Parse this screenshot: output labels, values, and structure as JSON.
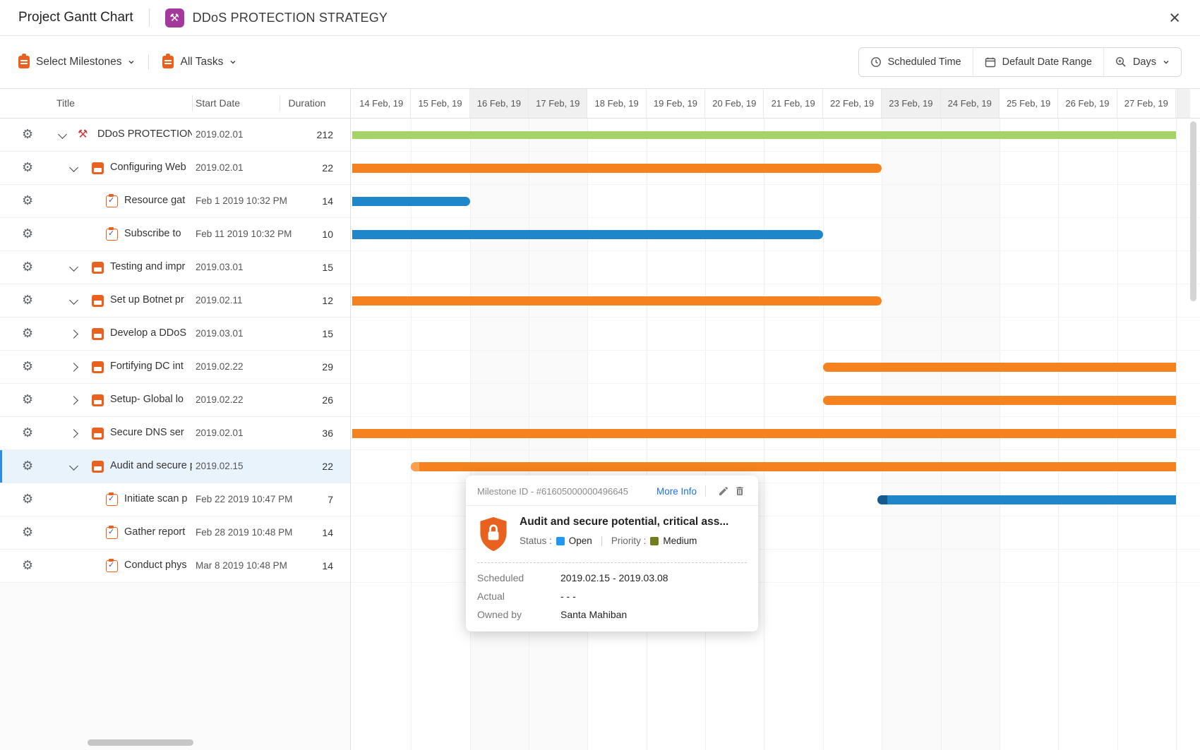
{
  "header": {
    "app_title": "Project Gantt Chart",
    "project_name": "DDoS PROTECTION STRATEGY"
  },
  "toolbar": {
    "milestones_filter": "Select Milestones",
    "tasks_filter": "All Tasks",
    "scheduled_time": "Scheduled Time",
    "date_range": "Default Date Range",
    "zoom_level": "Days"
  },
  "table": {
    "columns": [
      "Title",
      "Start Date",
      "Duration"
    ]
  },
  "rows": [
    {
      "type": "project",
      "level": 0,
      "expand": "down",
      "title": "DDoS PROTECTION STRATEGY",
      "start": "2019.02.01",
      "duration": "212"
    },
    {
      "type": "milestone",
      "level": 1,
      "expand": "down",
      "title": "Configuring Web",
      "start": "2019.02.01",
      "duration": "22"
    },
    {
      "type": "task",
      "level": 2,
      "expand": "none",
      "title": "Resource gat",
      "start": "Feb 1 2019 10:32 PM",
      "duration": "14"
    },
    {
      "type": "task",
      "level": 2,
      "expand": "none",
      "title": "Subscribe to",
      "start": "Feb 11 2019 10:32 PM",
      "duration": "10"
    },
    {
      "type": "milestone",
      "level": 1,
      "expand": "down",
      "title": "Testing and impr",
      "start": "2019.03.01",
      "duration": "15"
    },
    {
      "type": "milestone",
      "level": 1,
      "expand": "down",
      "title": "Set up Botnet pr",
      "start": "2019.02.11",
      "duration": "12"
    },
    {
      "type": "milestone",
      "level": 1,
      "expand": "right",
      "title": "Develop a DDoS",
      "start": "2019.03.01",
      "duration": "15"
    },
    {
      "type": "milestone",
      "level": 1,
      "expand": "right",
      "title": "Fortifying DC int",
      "start": "2019.02.22",
      "duration": "29"
    },
    {
      "type": "milestone",
      "level": 1,
      "expand": "right",
      "title": "Setup- Global lo",
      "start": "2019.02.22",
      "duration": "26"
    },
    {
      "type": "milestone",
      "level": 1,
      "expand": "right",
      "title": "Secure DNS ser",
      "start": "2019.02.01",
      "duration": "36"
    },
    {
      "type": "milestone",
      "level": 1,
      "expand": "down",
      "selected": true,
      "title": "Audit and secure potential, critical ass...",
      "start": "2019.02.15",
      "duration": "22"
    },
    {
      "type": "task",
      "level": 2,
      "expand": "none",
      "title": "Initiate scan p",
      "start": "Feb 22 2019 10:47 PM",
      "duration": "7"
    },
    {
      "type": "task",
      "level": 2,
      "expand": "none",
      "title": "Gather report",
      "start": "Feb 28 2019 10:48 PM",
      "duration": "14"
    },
    {
      "type": "task",
      "level": 2,
      "expand": "none",
      "title": "Conduct phys",
      "start": "Mar 8 2019 10:48 PM",
      "duration": "14"
    }
  ],
  "timeline": {
    "days": [
      {
        "label": "14 Feb, 19",
        "weekend": false
      },
      {
        "label": "15 Feb, 19",
        "weekend": false
      },
      {
        "label": "16 Feb, 19",
        "weekend": true
      },
      {
        "label": "17 Feb, 19",
        "weekend": true
      },
      {
        "label": "18 Feb, 19",
        "weekend": false
      },
      {
        "label": "19 Feb, 19",
        "weekend": false
      },
      {
        "label": "20 Feb, 19",
        "weekend": false
      },
      {
        "label": "21 Feb, 19",
        "weekend": false
      },
      {
        "label": "22 Feb, 19",
        "weekend": false
      },
      {
        "label": "23 Feb, 19",
        "weekend": true
      },
      {
        "label": "24 Feb, 19",
        "weekend": true
      },
      {
        "label": "25 Feb, 19",
        "weekend": false
      },
      {
        "label": "26 Feb, 19",
        "weekend": false
      },
      {
        "label": "27 Feb, 19",
        "weekend": false
      }
    ]
  },
  "bars": [
    {
      "row": 0,
      "color": "green",
      "start": 0,
      "end": 14,
      "flat_left": true,
      "flat_right": true
    },
    {
      "row": 1,
      "color": "orange",
      "start": 0,
      "end": 9,
      "flat_left": true
    },
    {
      "row": 2,
      "color": "blue",
      "start": 0,
      "end": 2,
      "flat_left": true
    },
    {
      "row": 3,
      "color": "blue",
      "start": 0,
      "end": 8,
      "flat_left": true
    },
    {
      "row": 5,
      "color": "orange",
      "start": 0,
      "end": 9,
      "flat_left": true
    },
    {
      "row": 7,
      "color": "orange",
      "start": 8,
      "end": 14,
      "flat_right": true
    },
    {
      "row": 8,
      "color": "orange",
      "start": 8,
      "end": 14,
      "flat_right": true
    },
    {
      "row": 9,
      "color": "orange",
      "start": 0,
      "end": 14,
      "flat_left": true,
      "flat_right": true
    },
    {
      "row": 10,
      "color": "orange",
      "start": 1,
      "end": 14,
      "flat_right": true,
      "light_cap": true
    },
    {
      "row": 11,
      "color": "blue",
      "start": 8.93,
      "end": 14,
      "flat_right": true,
      "dark_cap": true
    }
  ],
  "tooltip": {
    "id_label": "Milestone ID - #61605000000496645",
    "more_info": "More Info",
    "title": "Audit and secure potential, critical ass...",
    "status_label": "Status :",
    "status_value": "Open",
    "priority_label": "Priority :",
    "priority_value": "Medium",
    "scheduled_label": "Scheduled",
    "scheduled_value": "2019.02.15 - 2019.03.08",
    "actual_label": "Actual",
    "actual_value": "- - -",
    "owner_label": "Owned by",
    "owner_value": "Santa Mahiban"
  },
  "icons": {
    "gear": "⚙",
    "project": "⚒",
    "header_project": "⚒",
    "close": "×"
  },
  "colors": {
    "green": "#a5d368",
    "orange": "#f5821f",
    "blue": "#1f87c9",
    "blue_dark": "#145a8d",
    "orange_light": "#f8a04e",
    "selected_row": "#e9f3fc",
    "accent": "#2e8ee6",
    "status_open": "#2196f3",
    "priority_medium": "#737d1e",
    "link": "#1a73e8",
    "milestone_icon": "#e8611f",
    "project_badge": "#a2399b"
  }
}
